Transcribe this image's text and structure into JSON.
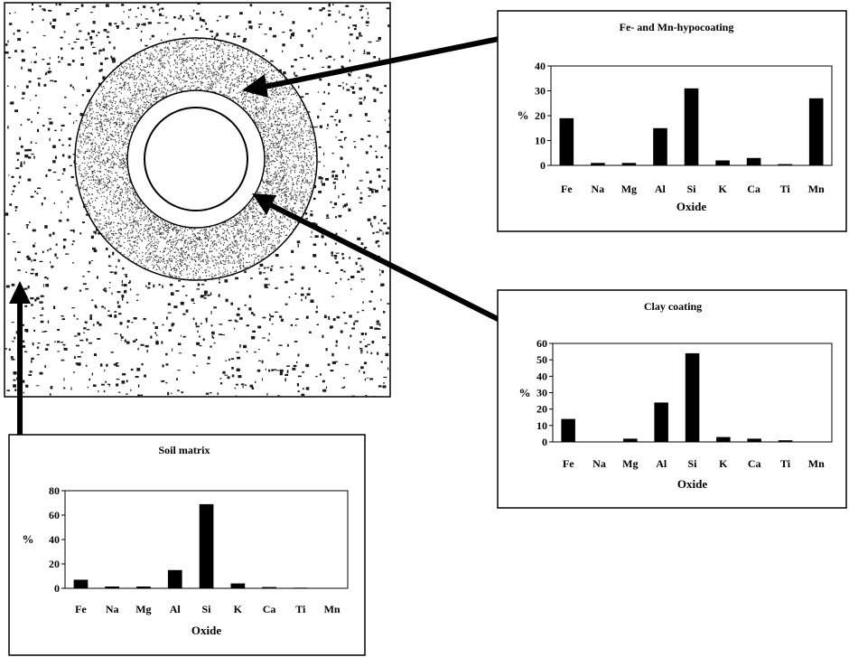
{
  "colors": {
    "ink": "#000000",
    "paper": "#ffffff",
    "speckle": "#1a1a1a"
  },
  "charts": [
    {
      "id": "fe-mn-hypocoating",
      "title": "Fe- and Mn-hypocoating",
      "xlabel": "Oxide",
      "ylabel": "%",
      "ylim": [
        0,
        40
      ],
      "yticks": [
        "0",
        "10",
        "20",
        "30",
        "40"
      ]
    },
    {
      "id": "clay-coating",
      "title": "Clay coating",
      "xlabel": "Oxide",
      "ylabel": "%",
      "ylim": [
        0,
        60
      ],
      "yticks": [
        "0",
        "10",
        "20",
        "30",
        "40",
        "50",
        "60"
      ]
    },
    {
      "id": "soil-matrix",
      "title": "Soil matrix",
      "xlabel": "Oxide",
      "ylabel": "%",
      "ylim": [
        0,
        80
      ],
      "yticks": [
        "0",
        "20",
        "40",
        "60",
        "80"
      ]
    }
  ],
  "chart_data": [
    {
      "type": "bar",
      "title": "Fe- and Mn-hypocoating",
      "categories": [
        "Fe",
        "Na",
        "Mg",
        "Al",
        "Si",
        "K",
        "Ca",
        "Ti",
        "Mn"
      ],
      "values": [
        19,
        1,
        1,
        15,
        31,
        2,
        3,
        0.5,
        27
      ],
      "xlabel": "Oxide",
      "ylabel": "%",
      "ylim": [
        0,
        40
      ],
      "grid": false
    },
    {
      "type": "bar",
      "title": "Clay coating",
      "categories": [
        "Fe",
        "Na",
        "Mg",
        "Al",
        "Si",
        "K",
        "Ca",
        "Ti",
        "Mn"
      ],
      "values": [
        14,
        0,
        2,
        24,
        54,
        3,
        2,
        1,
        0
      ],
      "xlabel": "Oxide",
      "ylabel": "%",
      "ylim": [
        0,
        60
      ],
      "grid": false
    },
    {
      "type": "bar",
      "title": "Soil matrix",
      "categories": [
        "Fe",
        "Na",
        "Mg",
        "Al",
        "Si",
        "K",
        "Ca",
        "Ti",
        "Mn"
      ],
      "values": [
        7,
        1.5,
        1.5,
        15,
        69,
        4,
        1,
        0.5,
        0
      ],
      "xlabel": "Oxide",
      "ylabel": "%",
      "ylim": [
        0,
        80
      ],
      "grid": false
    }
  ]
}
